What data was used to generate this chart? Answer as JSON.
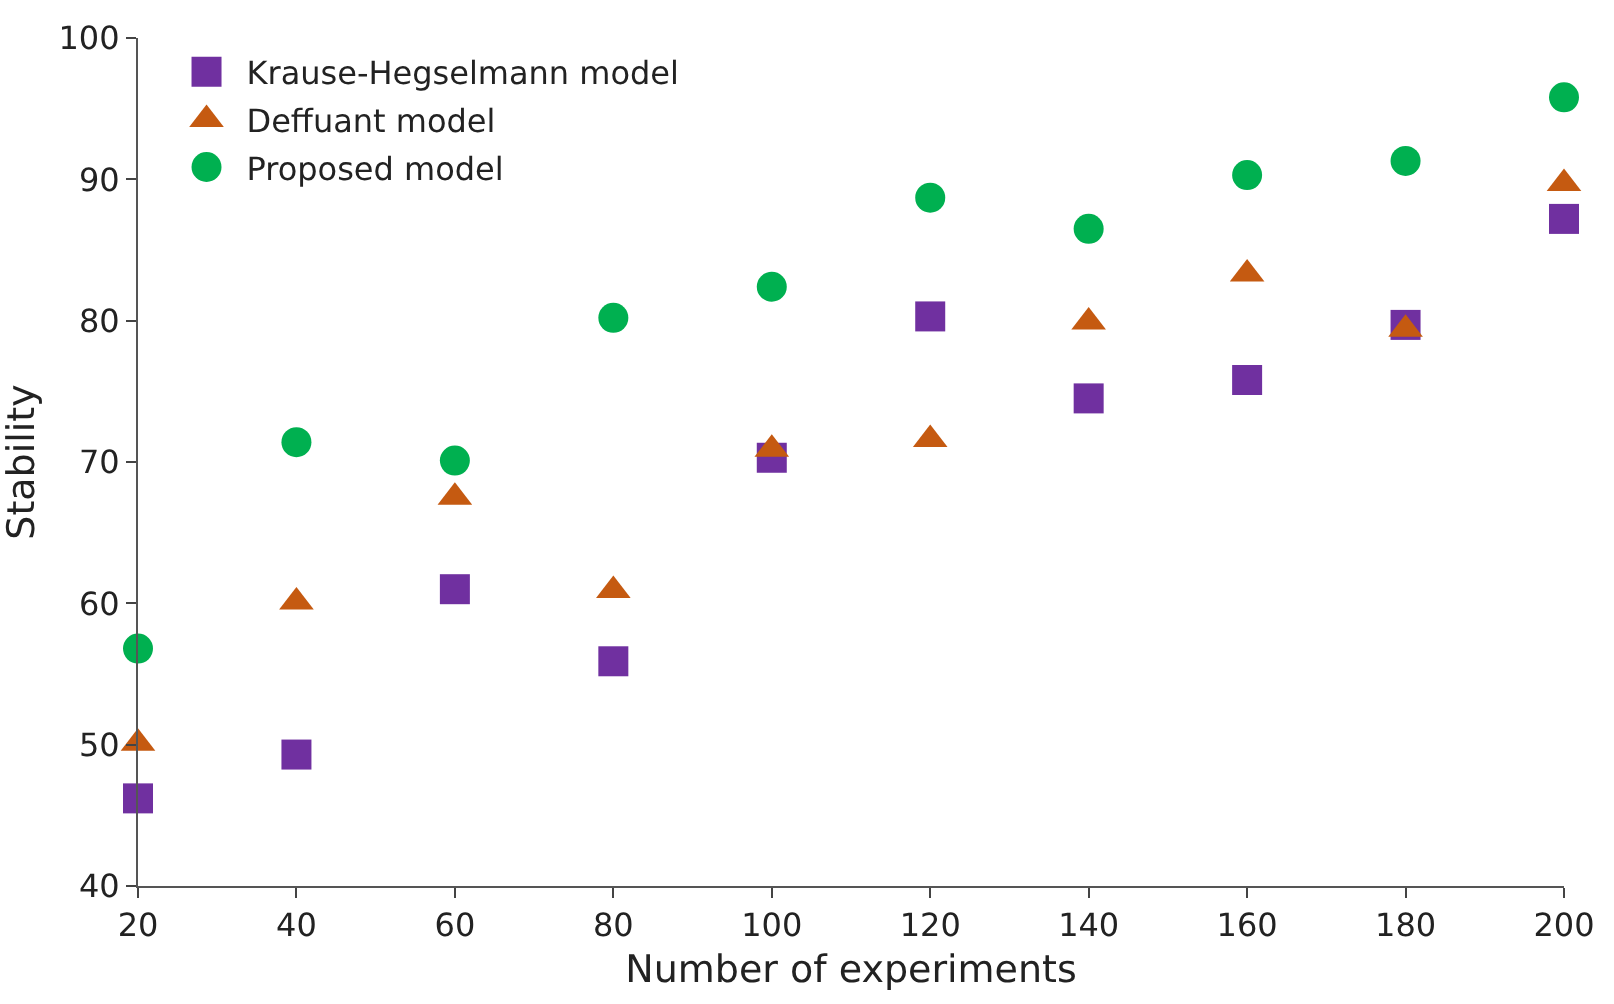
{
  "chart_data": {
    "type": "scatter",
    "xlabel": "Number of experiments",
    "ylabel": "Stability",
    "x": [
      20,
      40,
      60,
      80,
      100,
      120,
      140,
      160,
      180,
      200
    ],
    "xlim": [
      20,
      200
    ],
    "xticks": [
      20,
      40,
      60,
      80,
      100,
      120,
      140,
      160,
      180,
      200
    ],
    "ylim": [
      40,
      100
    ],
    "yticks": [
      40,
      50,
      60,
      70,
      80,
      90,
      100
    ],
    "legend": "top left",
    "series": [
      {
        "name": "Krause-Hegselmann model",
        "color": "#7030a0",
        "marker": "square",
        "values": [
          46.2,
          49.3,
          61.0,
          55.9,
          70.3,
          80.3,
          74.5,
          75.8,
          79.7,
          87.2
        ]
      },
      {
        "name": "Deffuant model",
        "color": "#c55a11",
        "marker": "triangle",
        "values": [
          50.1,
          60.1,
          67.5,
          60.9,
          70.9,
          71.6,
          79.9,
          83.3,
          79.4,
          89.7
        ]
      },
      {
        "name": "Proposed model",
        "color": "#00b050",
        "marker": "circle",
        "values": [
          56.8,
          71.4,
          70.1,
          80.2,
          82.4,
          88.7,
          86.5,
          90.3,
          91.3,
          95.8
        ]
      }
    ]
  }
}
